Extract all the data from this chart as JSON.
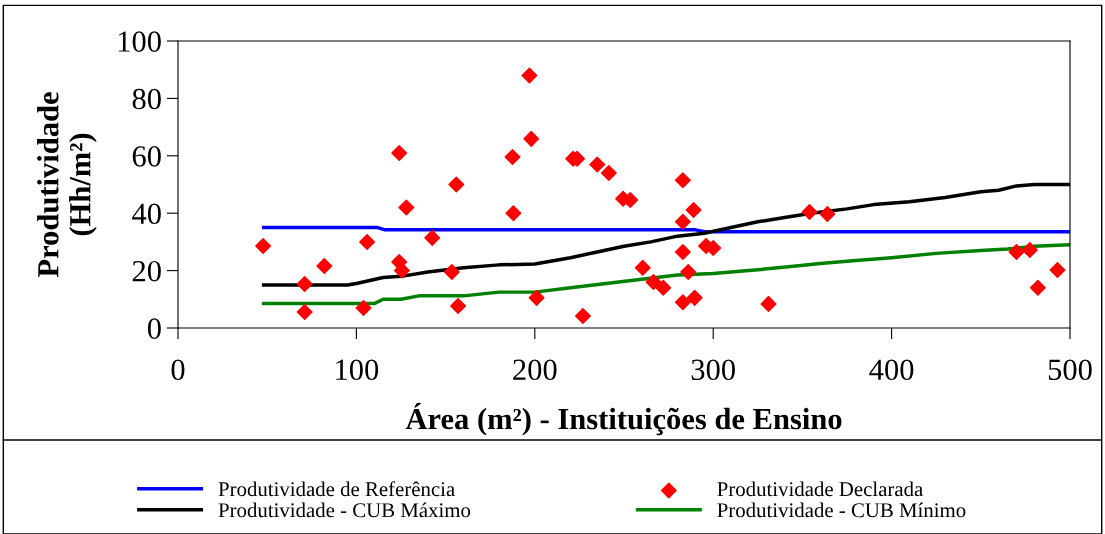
{
  "chart_data": {
    "type": "line",
    "xlabel": "Área (m²) - Instituições de Ensino",
    "ylabel": "Produtividade\n(Hh/m²)",
    "xlim": [
      0,
      500
    ],
    "xticks": [
      0,
      100,
      200,
      300,
      400,
      500
    ],
    "ylim": [
      0,
      100
    ],
    "yticks": [
      0,
      20,
      40,
      60,
      80,
      100
    ],
    "grid": false,
    "legend": "bottom",
    "series": [
      {
        "name": "Produtividade de Referência",
        "color": "#0000ff",
        "marker": "none",
        "x": [
          48,
          112,
          116,
          290,
          296,
          500
        ],
        "values": [
          35,
          35,
          34.2,
          34.2,
          33.5,
          33.5
        ]
      },
      {
        "name": "Produtividade Declarada",
        "type": "scatter",
        "color": "#ff0000",
        "marker": "diamond",
        "x": [
          47.7,
          71,
          71,
          82,
          106,
          104,
          124,
          124,
          125.5,
          128,
          142.5,
          153.5,
          157,
          156,
          188,
          187.5,
          197,
          198,
          201,
          221.5,
          223.7,
          235,
          241.5,
          249.5,
          253.5,
          260.5,
          266.5,
          272,
          227,
          283,
          283,
          283,
          286,
          283,
          289,
          289.6,
          296,
          300,
          331,
          354,
          364,
          470,
          477.5,
          482,
          493
        ],
        "values": [
          28.6,
          5.6,
          15.3,
          21.6,
          30,
          7,
          61,
          23,
          20,
          42,
          31.4,
          19.5,
          7.7,
          50,
          40,
          59.6,
          88,
          65.9,
          10.5,
          59,
          59,
          57,
          54,
          45,
          44.6,
          21,
          16,
          14,
          4.2,
          51.5,
          37,
          26.5,
          19.5,
          9,
          41.1,
          10.5,
          28.6,
          27.9,
          8.4,
          40.4,
          39.7,
          26.5,
          27.2,
          14,
          20.2
        ]
      },
      {
        "name": "Produtividade - CUB Máximo",
        "color": "#000000",
        "marker": "none",
        "x": [
          48,
          95,
          100,
          115,
          125,
          140,
          160,
          180,
          200,
          220,
          235,
          250,
          265,
          280,
          295,
          310,
          325,
          340,
          355,
          375,
          390,
          410,
          430,
          450,
          460,
          470,
          480,
          500
        ],
        "values": [
          15,
          15,
          15.5,
          17.6,
          18,
          19.5,
          21,
          22,
          22.3,
          24.5,
          26.5,
          28.5,
          30,
          32,
          33,
          35,
          37,
          38.5,
          40,
          41.5,
          43,
          44,
          45.5,
          47.5,
          48,
          49.5,
          50,
          50
        ]
      },
      {
        "name": "Produtividade - CUB Mínimo",
        "color": "#008000",
        "marker": "none",
        "x": [
          48,
          110,
          115,
          125,
          135,
          160,
          180,
          200,
          220,
          240,
          260,
          280,
          300,
          320,
          345,
          360,
          380,
          400,
          425,
          450,
          465,
          480,
          500
        ],
        "values": [
          8.5,
          8.5,
          10,
          10,
          11.2,
          11.2,
          12.5,
          12.5,
          14,
          15.5,
          17,
          18.5,
          19,
          20,
          21.5,
          22.5,
          23.5,
          24.5,
          26,
          27,
          27.5,
          28.5,
          29
        ]
      }
    ]
  }
}
